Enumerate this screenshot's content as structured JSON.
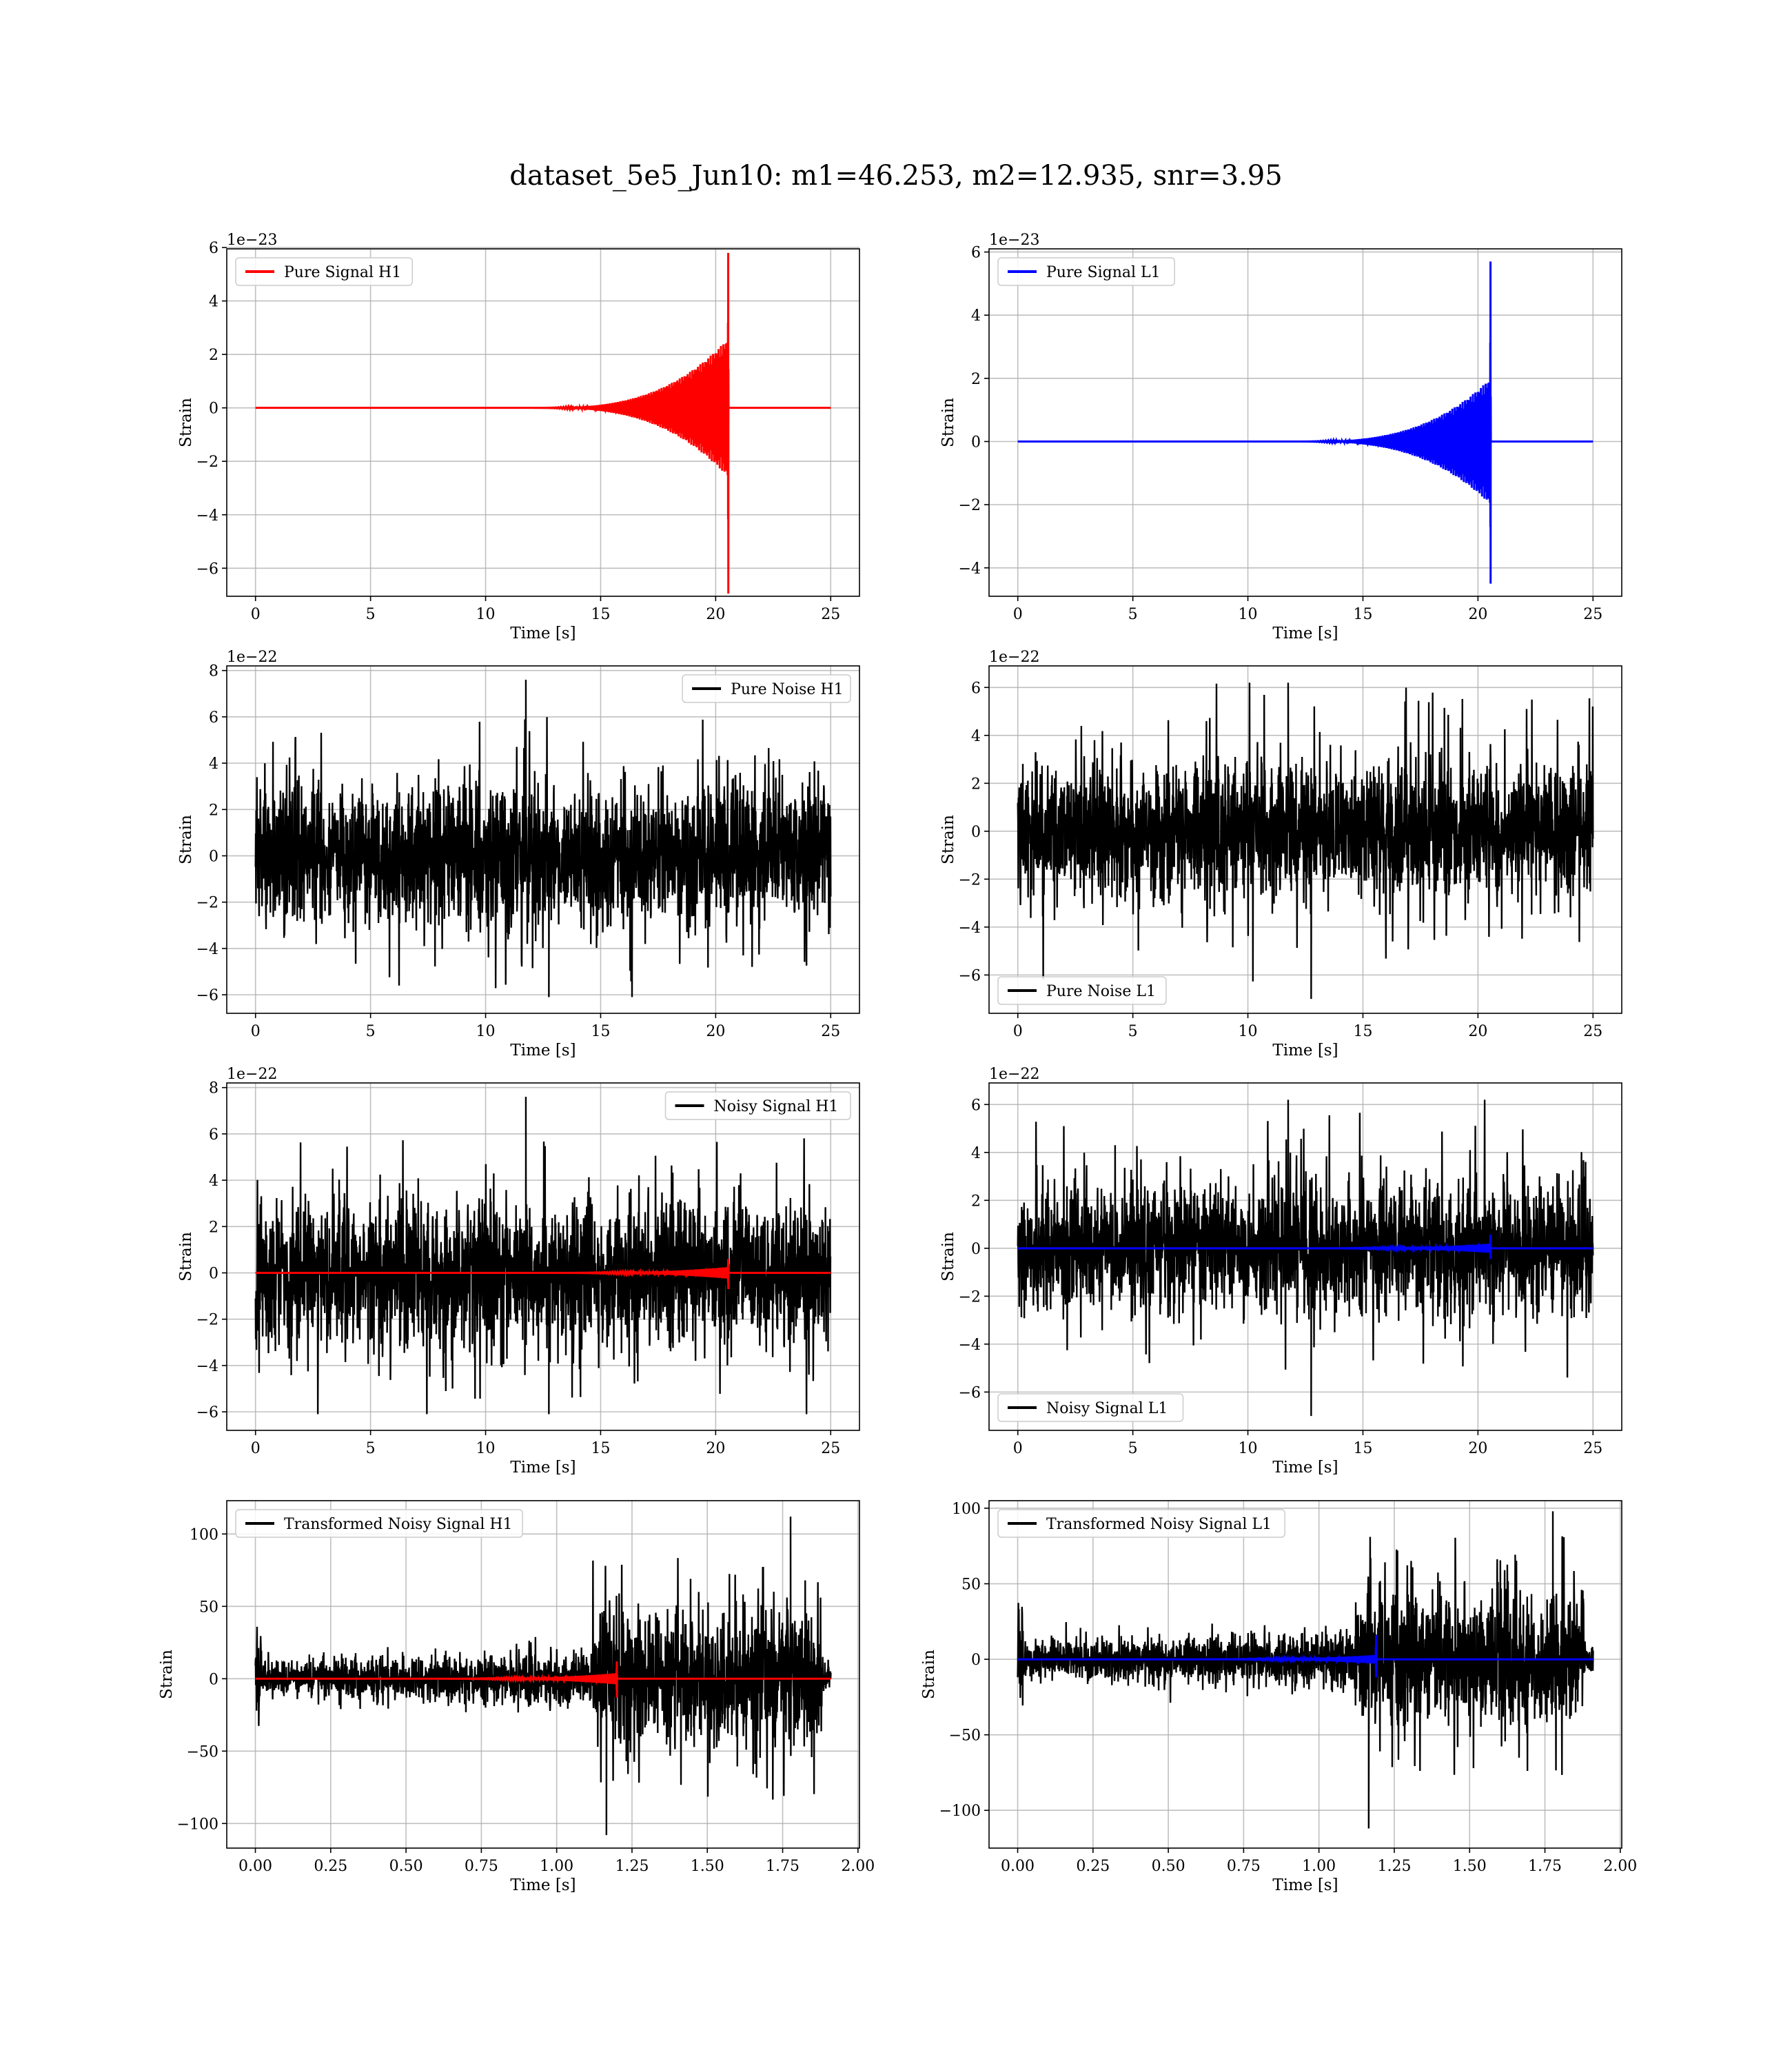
{
  "figure": {
    "title": "dataset_5e5_Jun10: m1=46.253, m2=12.935, snr=3.95"
  },
  "chart_data": [
    {
      "type": "line",
      "id": "pure-signal-h1",
      "xlabel": "Time [s]",
      "ylabel": "Strain",
      "offset_label": "1e−23",
      "xlim": [
        -1.25,
        26.25
      ],
      "ylim": [
        -7.05,
        5.95
      ],
      "xticks": [
        0,
        5,
        10,
        15,
        20,
        25
      ],
      "xtick_labels": [
        "0",
        "5",
        "10",
        "15",
        "20",
        "25"
      ],
      "yticks": [
        -6,
        -4,
        -2,
        0,
        2,
        4,
        6
      ],
      "ytick_labels": [
        "−6",
        "−4",
        "−2",
        "0",
        "2",
        "4",
        "6"
      ],
      "legend_loc": "upper-left",
      "grid": true,
      "series": [
        {
          "name": "Pure Signal H1",
          "color": "#ff0000",
          "kind": "chirp",
          "x_end": 25,
          "t_merge": 20.55,
          "max": 5.8,
          "min": -6.95,
          "pre_amp": 2.6
        }
      ]
    },
    {
      "type": "line",
      "id": "pure-signal-l1",
      "xlabel": "Time [s]",
      "ylabel": "Strain",
      "offset_label": "1e−23",
      "xlim": [
        -1.25,
        26.25
      ],
      "ylim": [
        -4.9,
        6.1
      ],
      "xticks": [
        0,
        5,
        10,
        15,
        20,
        25
      ],
      "xtick_labels": [
        "0",
        "5",
        "10",
        "15",
        "20",
        "25"
      ],
      "yticks": [
        -4,
        -2,
        0,
        2,
        4,
        6
      ],
      "ytick_labels": [
        "−4",
        "−2",
        "0",
        "2",
        "4",
        "6"
      ],
      "legend_loc": "upper-left",
      "grid": true,
      "series": [
        {
          "name": "Pure Signal L1",
          "color": "#0000ff",
          "kind": "chirp",
          "x_end": 25,
          "t_merge": 20.55,
          "max": 5.7,
          "min": -4.5,
          "pre_amp": 2.0
        }
      ]
    },
    {
      "type": "line",
      "id": "pure-noise-h1",
      "xlabel": "Time [s]",
      "ylabel": "Strain",
      "offset_label": "1e−22",
      "xlim": [
        -1.25,
        26.25
      ],
      "ylim": [
        -6.8,
        8.2
      ],
      "xticks": [
        0,
        5,
        10,
        15,
        20,
        25
      ],
      "xtick_labels": [
        "0",
        "5",
        "10",
        "15",
        "20",
        "25"
      ],
      "yticks": [
        -6,
        -4,
        -2,
        0,
        2,
        4,
        6,
        8
      ],
      "ytick_labels": [
        "−6",
        "−4",
        "−2",
        "0",
        "2",
        "4",
        "6",
        "8"
      ],
      "legend_loc": "upper-right",
      "grid": true,
      "series": [
        {
          "name": "Pure Noise H1",
          "color": "#000000",
          "kind": "noise",
          "x_end": 25,
          "core": 3.6,
          "max": 7.6,
          "min": -6.1
        }
      ]
    },
    {
      "type": "line",
      "id": "pure-noise-l1",
      "xlabel": "Time [s]",
      "ylabel": "Strain",
      "offset_label": "1e−22",
      "xlim": [
        -1.25,
        26.25
      ],
      "ylim": [
        -7.6,
        6.9
      ],
      "xticks": [
        0,
        5,
        10,
        15,
        20,
        25
      ],
      "xtick_labels": [
        "0",
        "5",
        "10",
        "15",
        "20",
        "25"
      ],
      "yticks": [
        -6,
        -4,
        -2,
        0,
        2,
        4,
        6
      ],
      "ytick_labels": [
        "−6",
        "−4",
        "−2",
        "0",
        "2",
        "4",
        "6"
      ],
      "legend_loc": "lower-left",
      "grid": true,
      "series": [
        {
          "name": "Pure Noise L1",
          "color": "#000000",
          "kind": "noise",
          "x_end": 25,
          "core": 3.3,
          "max": 6.2,
          "min": -7.0
        }
      ]
    },
    {
      "type": "line",
      "id": "noisy-signal-h1",
      "xlabel": "Time [s]",
      "ylabel": "Strain",
      "offset_label": "1e−22",
      "xlim": [
        -1.25,
        26.25
      ],
      "ylim": [
        -6.8,
        8.2
      ],
      "xticks": [
        0,
        5,
        10,
        15,
        20,
        25
      ],
      "xtick_labels": [
        "0",
        "5",
        "10",
        "15",
        "20",
        "25"
      ],
      "yticks": [
        -6,
        -4,
        -2,
        0,
        2,
        4,
        6,
        8
      ],
      "ytick_labels": [
        "−6",
        "−4",
        "−2",
        "0",
        "2",
        "4",
        "6",
        "8"
      ],
      "legend_loc": "upper-right",
      "grid": true,
      "series": [
        {
          "name": "Noisy Signal H1",
          "color": "#000000",
          "kind": "noise",
          "x_end": 25,
          "core": 3.6,
          "max": 7.6,
          "min": -6.1
        },
        {
          "name": "",
          "color": "#ff0000",
          "kind": "chirp",
          "x_end": 25,
          "t_merge": 20.55,
          "max": 0.6,
          "min": -0.7,
          "pre_amp": 0.26
        }
      ]
    },
    {
      "type": "line",
      "id": "noisy-signal-l1",
      "xlabel": "Time [s]",
      "ylabel": "Strain",
      "offset_label": "1e−22",
      "xlim": [
        -1.25,
        26.25
      ],
      "ylim": [
        -7.6,
        6.9
      ],
      "xticks": [
        0,
        5,
        10,
        15,
        20,
        25
      ],
      "xtick_labels": [
        "0",
        "5",
        "10",
        "15",
        "20",
        "25"
      ],
      "yticks": [
        -6,
        -4,
        -2,
        0,
        2,
        4,
        6
      ],
      "ytick_labels": [
        "−6",
        "−4",
        "−2",
        "0",
        "2",
        "4",
        "6"
      ],
      "legend_loc": "lower-left",
      "grid": true,
      "series": [
        {
          "name": "Noisy Signal L1",
          "color": "#000000",
          "kind": "noise",
          "x_end": 25,
          "core": 3.3,
          "max": 6.2,
          "min": -7.0
        },
        {
          "name": "",
          "color": "#0000ff",
          "kind": "chirp",
          "x_end": 25,
          "t_merge": 20.55,
          "max": 0.57,
          "min": -0.45,
          "pre_amp": 0.2
        }
      ]
    },
    {
      "type": "line",
      "id": "transformed-noisy-signal-h1",
      "xlabel": "Time [s]",
      "ylabel": "Strain",
      "offset_label": "",
      "xlim": [
        -0.095,
        2.005
      ],
      "ylim": [
        -117,
        123
      ],
      "xticks": [
        0,
        0.25,
        0.5,
        0.75,
        1.0,
        1.25,
        1.5,
        1.75,
        2.0
      ],
      "xtick_labels": [
        "0.00",
        "0.25",
        "0.50",
        "0.75",
        "1.00",
        "1.25",
        "1.50",
        "1.75",
        "2.00"
      ],
      "yticks": [
        -100,
        -50,
        0,
        50,
        100
      ],
      "ytick_labels": [
        "−100",
        "−50",
        "0",
        "50",
        "100"
      ],
      "legend_loc": "upper-left",
      "grid": true,
      "series": [
        {
          "name": "Transformed Noisy Signal H1",
          "color": "#000000",
          "kind": "whitened",
          "x_end": 1.91,
          "t_jump": 1.12,
          "pre_amp": 6,
          "post_amp": 40,
          "max": 112,
          "min": -108
        },
        {
          "name": "",
          "color": "#ff0000",
          "kind": "chirp",
          "x_end": 1.91,
          "t_merge": 1.2,
          "max": 12,
          "min": -13,
          "pre_amp": 4
        }
      ]
    },
    {
      "type": "line",
      "id": "transformed-noisy-signal-l1",
      "xlabel": "Time [s]",
      "ylabel": "Strain",
      "offset_label": "",
      "xlim": [
        -0.095,
        2.005
      ],
      "ylim": [
        -125,
        105
      ],
      "xticks": [
        0,
        0.25,
        0.5,
        0.75,
        1.0,
        1.25,
        1.5,
        1.75,
        2.0
      ],
      "xtick_labels": [
        "0.00",
        "0.25",
        "0.50",
        "0.75",
        "1.00",
        "1.25",
        "1.50",
        "1.75",
        "2.00"
      ],
      "yticks": [
        -100,
        -50,
        0,
        50,
        100
      ],
      "ytick_labels": [
        "−100",
        "−50",
        "0",
        "50",
        "100"
      ],
      "legend_loc": "upper-left",
      "grid": true,
      "series": [
        {
          "name": "Transformed Noisy Signal L1",
          "color": "#000000",
          "kind": "whitened",
          "x_end": 1.91,
          "t_jump": 1.12,
          "pre_amp": 6,
          "post_amp": 40,
          "max": 98,
          "min": -112
        },
        {
          "name": "",
          "color": "#0000ff",
          "kind": "chirp",
          "x_end": 1.91,
          "t_merge": 1.19,
          "max": 16,
          "min": -12,
          "pre_amp": 3
        }
      ]
    }
  ]
}
